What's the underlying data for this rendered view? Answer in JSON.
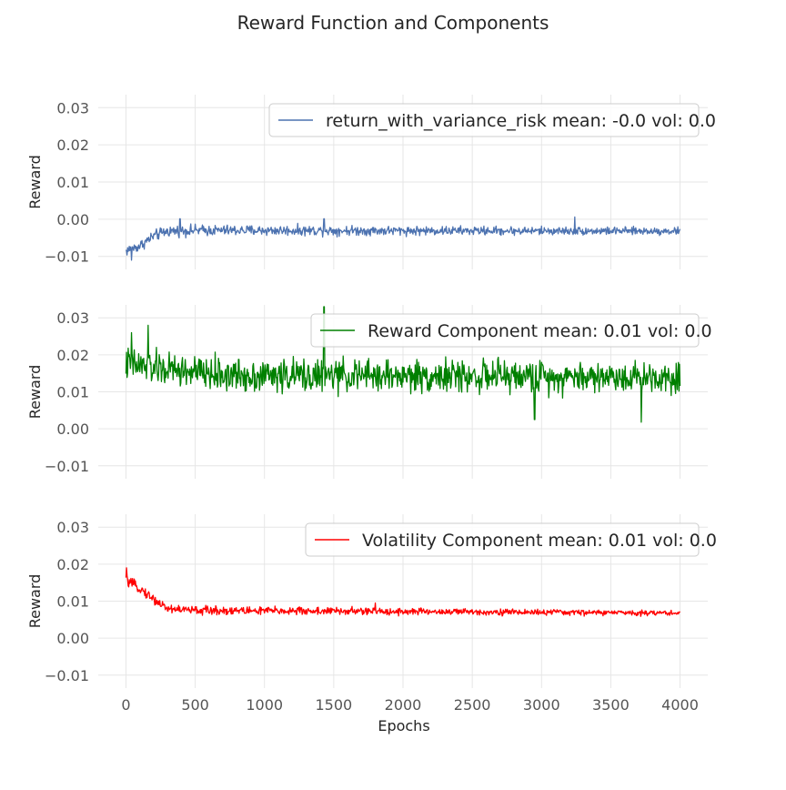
{
  "figure_title": "Reward Function and Components",
  "colors": {
    "grid": "#e6e6e6",
    "tick_text": "#555555",
    "label_text": "#262626",
    "legend_border": "#cccccc"
  },
  "chart_data": [
    {
      "type": "line",
      "xlabel": "",
      "ylabel": "Reward",
      "xlim": [
        -200,
        4200
      ],
      "ylim": [
        -0.0135,
        0.0335
      ],
      "x_ticks": [
        0,
        500,
        1000,
        1500,
        2000,
        2500,
        3000,
        3500,
        4000
      ],
      "x_tick_labels_visible": false,
      "y_ticks": [
        -0.01,
        0.0,
        0.01,
        0.02,
        0.03
      ],
      "y_tick_labels": [
        "−0.01",
        "0.00",
        "0.01",
        "0.02",
        "0.03"
      ],
      "grid": true,
      "legend_position": "upper-right",
      "series": [
        {
          "name": "return_with_variance_risk mean: -0.0 vol: 0.0",
          "color": "#4c72b0",
          "x_range": [
            0,
            4000
          ],
          "trend": [
            [
              0,
              -0.0085
            ],
            [
              100,
              -0.0072
            ],
            [
              200,
              -0.0045
            ],
            [
              300,
              -0.0032
            ],
            [
              500,
              -0.003
            ],
            [
              4000,
              -0.0032
            ]
          ],
          "noise": [
            [
              0,
              0.0014
            ],
            [
              4000,
              0.0009
            ]
          ],
          "spikes": [
            [
              390,
              0.0001
            ],
            [
              1430,
              0.0001
            ],
            [
              3240,
              0.0006
            ],
            [
              40,
              -0.011
            ]
          ]
        }
      ]
    },
    {
      "type": "line",
      "xlabel": "",
      "ylabel": "Reward",
      "xlim": [
        -200,
        4200
      ],
      "ylim": [
        -0.0135,
        0.0335
      ],
      "x_ticks": [
        0,
        500,
        1000,
        1500,
        2000,
        2500,
        3000,
        3500,
        4000
      ],
      "x_tick_labels_visible": false,
      "y_ticks": [
        -0.01,
        0.0,
        0.01,
        0.02,
        0.03
      ],
      "y_tick_labels": [
        "−0.01",
        "0.00",
        "0.01",
        "0.02",
        "0.03"
      ],
      "grid": true,
      "legend_position": "upper-right",
      "series": [
        {
          "name": "Reward Component mean: 0.01 vol: 0.0",
          "color": "#008000",
          "x_range": [
            0,
            4000
          ],
          "trend": [
            [
              0,
              0.0175
            ],
            [
              300,
              0.016
            ],
            [
              700,
              0.0145
            ],
            [
              4000,
              0.014
            ]
          ],
          "noise": [
            [
              0,
              0.0042
            ],
            [
              4000,
              0.0038
            ]
          ],
          "spikes": [
            [
              1430,
              0.033
            ],
            [
              2950,
              0.0025
            ],
            [
              3720,
              0.0018
            ],
            [
              40,
              0.026
            ],
            [
              160,
              0.028
            ]
          ]
        }
      ]
    },
    {
      "type": "line",
      "xlabel": "Epochs",
      "ylabel": "Reward",
      "xlim": [
        -200,
        4200
      ],
      "ylim": [
        -0.0135,
        0.0335
      ],
      "x_ticks": [
        0,
        500,
        1000,
        1500,
        2000,
        2500,
        3000,
        3500,
        4000
      ],
      "x_tick_labels": [
        "0",
        "500",
        "1000",
        "1500",
        "2000",
        "2500",
        "3000",
        "3500",
        "4000"
      ],
      "x_tick_labels_visible": true,
      "y_ticks": [
        -0.01,
        0.0,
        0.01,
        0.02,
        0.03
      ],
      "y_tick_labels": [
        "−0.01",
        "0.00",
        "0.01",
        "0.02",
        "0.03"
      ],
      "grid": true,
      "legend_position": "upper-right",
      "series": [
        {
          "name": "Volatility Component mean: 0.01 vol: 0.0",
          "color": "#ff0000",
          "x_range": [
            0,
            4000
          ],
          "trend": [
            [
              0,
              0.0155
            ],
            [
              100,
              0.0135
            ],
            [
              200,
              0.0105
            ],
            [
              300,
              0.008
            ],
            [
              500,
              0.0075
            ],
            [
              4000,
              0.0068
            ]
          ],
          "noise": [
            [
              0,
              0.0012
            ],
            [
              4000,
              0.0006
            ]
          ],
          "spikes": [
            [
              5,
              0.019
            ],
            [
              1800,
              0.0095
            ]
          ]
        }
      ]
    }
  ]
}
